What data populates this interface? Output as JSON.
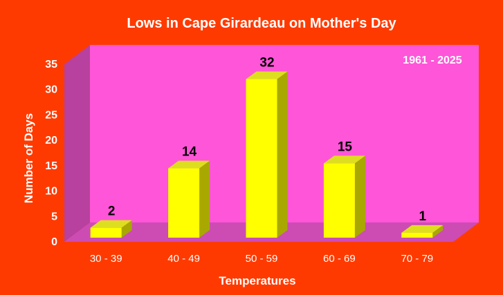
{
  "chart_data": {
    "type": "bar",
    "title": "Lows in Cape Girardeau on Mother's Day",
    "annotation": "1961 - 2025",
    "xlabel": "Temperatures",
    "ylabel": "Number of Days",
    "categories": [
      "30 - 39",
      "40 - 49",
      "50 - 59",
      "60 - 69",
      "70 - 79"
    ],
    "values": [
      2,
      14,
      32,
      15,
      1
    ],
    "data_labels": [
      "2",
      "14",
      "32",
      "15",
      "1"
    ],
    "y_ticks": [
      "0",
      "5",
      "10",
      "15",
      "20",
      "25",
      "30",
      "35"
    ],
    "ylim": [
      0,
      35
    ],
    "grid": false,
    "legend": "none",
    "three_d": true,
    "colors": {
      "page_background": "#ff3a00",
      "back_wall": "#ff55d8",
      "side_wall": "#b8409e",
      "floor": "#cc4cb4",
      "bar_front": "#ffff00",
      "bar_top": "#dede20",
      "bar_side": "#a8a800",
      "axis_text": "#ffffff",
      "data_label_text": "#000000"
    }
  }
}
